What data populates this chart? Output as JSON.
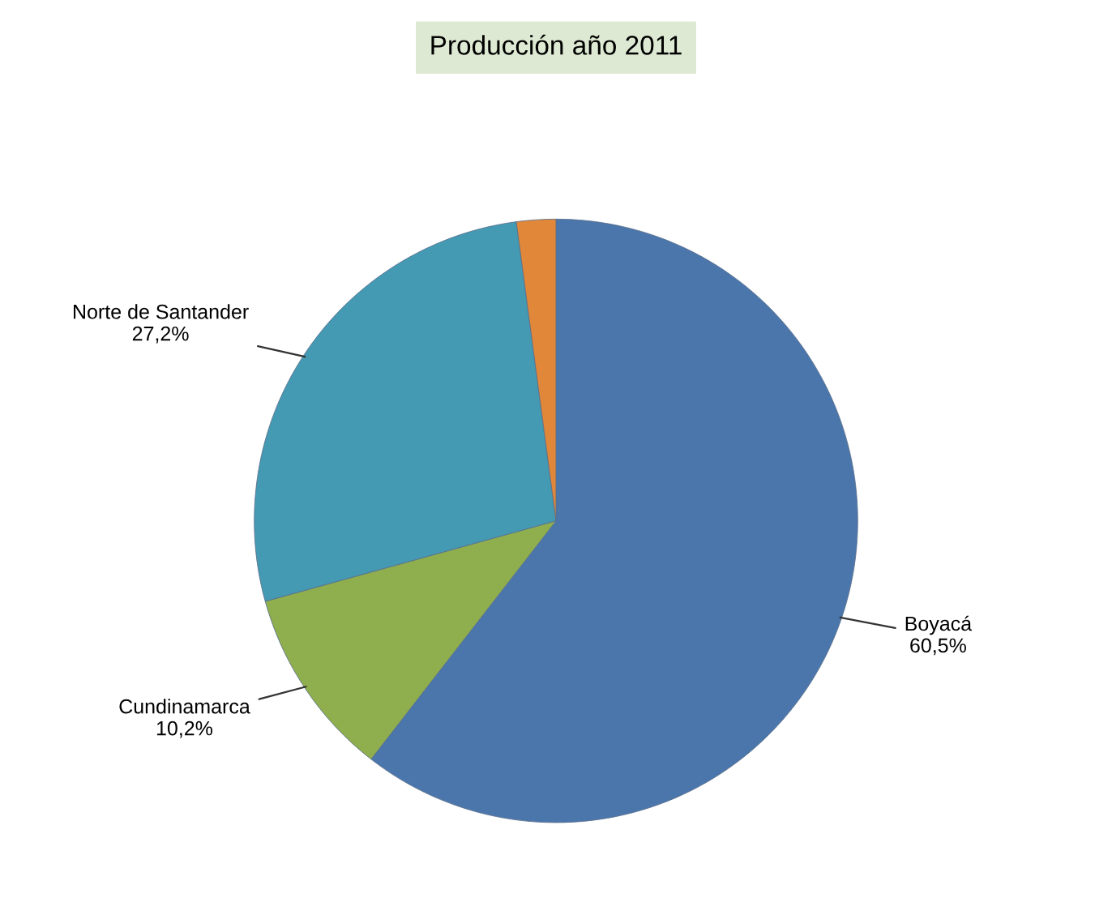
{
  "chart_data": {
    "type": "pie",
    "title": "Producción año 2011",
    "categories": [
      "Boyacá",
      "Cundinamarca",
      "Norte de Santander",
      null
    ],
    "values": [
      60.5,
      10.2,
      27.2,
      2.1
    ],
    "value_labels": [
      "60,5%",
      "10,2%",
      "27,2%",
      null
    ],
    "colors": [
      "#4a76ab",
      "#8fae4e",
      "#4499b3",
      "#e0873a"
    ],
    "legend": false
  }
}
